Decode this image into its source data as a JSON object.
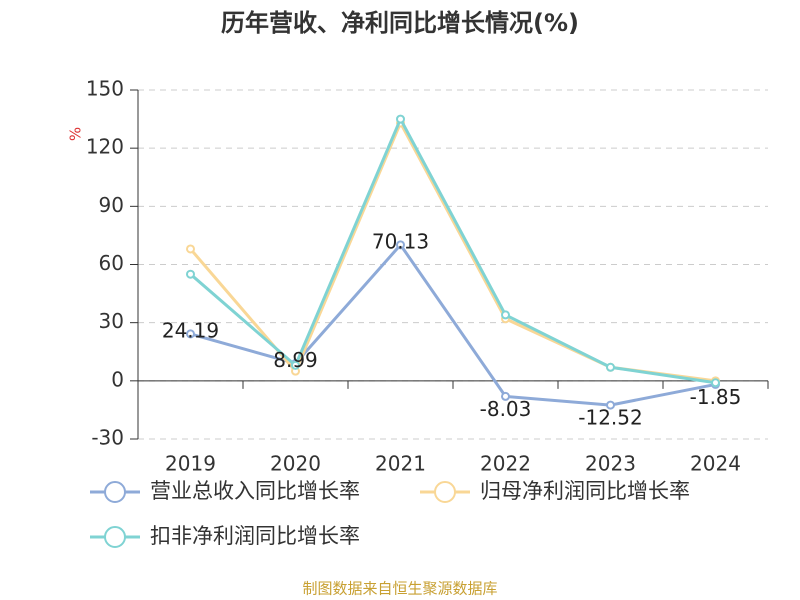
{
  "chart_data": {
    "type": "line",
    "title": "历年营收、净利同比增长情况(%)",
    "y_label": "%",
    "categories": [
      "2019",
      "2020",
      "2021",
      "2022",
      "2023",
      "2024"
    ],
    "series": [
      {
        "name": "营业总收入同比增长率",
        "color": "#8eaad8",
        "values": [
          24.19,
          8.99,
          70.13,
          -8.03,
          -12.52,
          -1.85
        ],
        "labels": true
      },
      {
        "name": "归母净利润同比增长率",
        "color": "#f9d796",
        "values": [
          68,
          5,
          133,
          32,
          7,
          0
        ],
        "labels": false
      },
      {
        "name": "扣非净利润同比增长率",
        "color": "#7fd3d3",
        "values": [
          55,
          8,
          135,
          34,
          7,
          -1
        ],
        "labels": false
      }
    ],
    "ylim": [
      -30,
      150
    ],
    "yticks": [
      -30,
      0,
      30,
      60,
      90,
      120,
      150
    ],
    "grid": true,
    "footer": "制图数据来自恒生聚源数据库"
  }
}
